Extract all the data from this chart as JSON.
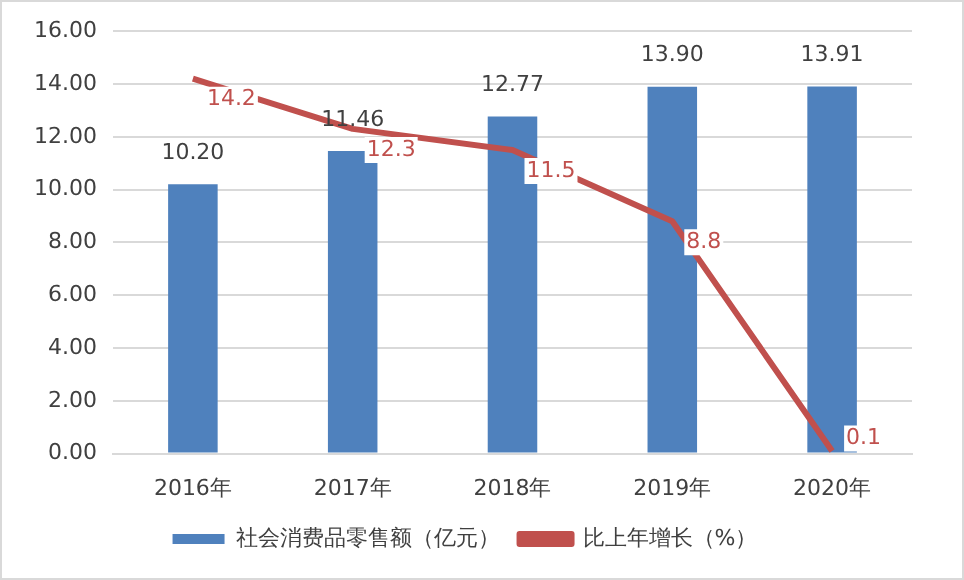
{
  "chart_data": {
    "type": "bar",
    "categories": [
      "2016年",
      "2017年",
      "2018年",
      "2019年",
      "2020年"
    ],
    "series": [
      {
        "name": "社会消费品零售额（亿元）",
        "color": "#4f81bd",
        "values": [
          10.2,
          11.46,
          12.77,
          13.9,
          13.91
        ],
        "value_labels": [
          "10.20",
          "11.46",
          "12.77",
          "13.90",
          "13.91"
        ]
      },
      {
        "name": "比上年增长（%）",
        "type": "line",
        "color": "#c0504d",
        "values": [
          14.2,
          12.3,
          11.5,
          8.8,
          0.1
        ],
        "value_labels": [
          "14.2",
          "12.3",
          "11.5",
          "8.8",
          "0.1"
        ]
      }
    ],
    "ylim": [
      0,
      16
    ],
    "yticks": [
      {
        "value": 0,
        "label": "0.00"
      },
      {
        "value": 2,
        "label": "2.00"
      },
      {
        "value": 4,
        "label": "4.00"
      },
      {
        "value": 6,
        "label": "6.00"
      },
      {
        "value": 8,
        "label": "8.00"
      },
      {
        "value": 10,
        "label": "10.00"
      },
      {
        "value": 12,
        "label": "12.00"
      },
      {
        "value": 14,
        "label": "14.00"
      },
      {
        "value": 16,
        "label": "16.00"
      }
    ],
    "grid": "y",
    "legend": "bottom",
    "marker": "none"
  }
}
